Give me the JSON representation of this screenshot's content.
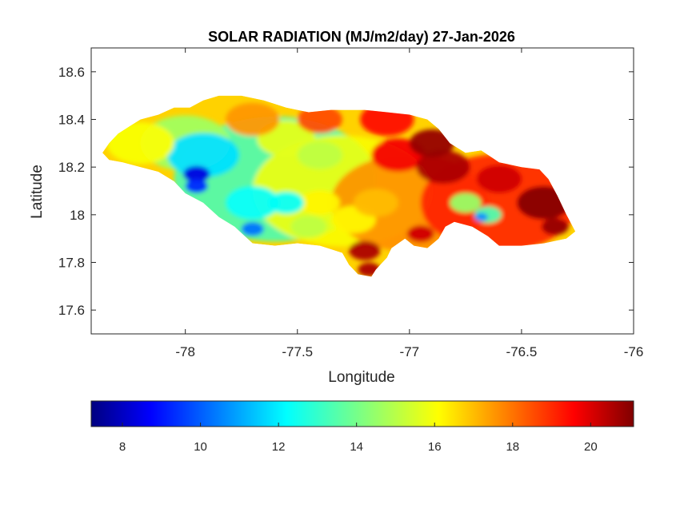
{
  "title": "SOLAR RADIATION (MJ/m2/day) 27-Jan-2026",
  "xlabel": "Longitude",
  "ylabel": "Latitude",
  "xlim": [
    -78.42,
    -76.0
  ],
  "ylim": [
    17.5,
    18.7
  ],
  "xticks": [
    {
      "value": -78,
      "label": "-78"
    },
    {
      "value": -77.5,
      "label": "-77.5"
    },
    {
      "value": -77,
      "label": "-77"
    },
    {
      "value": -76.5,
      "label": "-76.5"
    },
    {
      "value": -76,
      "label": "-76"
    }
  ],
  "yticks": [
    {
      "value": 17.6,
      "label": "17.6"
    },
    {
      "value": 17.8,
      "label": "17.8"
    },
    {
      "value": 18,
      "label": "18"
    },
    {
      "value": 18.2,
      "label": "18.2"
    },
    {
      "value": 18.4,
      "label": "18.4"
    },
    {
      "value": 18.6,
      "label": "18.6"
    }
  ],
  "colorbar": {
    "colormap": "jet",
    "range": [
      7.2,
      21.1
    ],
    "ticks": [
      {
        "value": 8,
        "label": "8"
      },
      {
        "value": 10,
        "label": "10"
      },
      {
        "value": 12,
        "label": "12"
      },
      {
        "value": 14,
        "label": "14"
      },
      {
        "value": 16,
        "label": "16"
      },
      {
        "value": 18,
        "label": "18"
      },
      {
        "value": 20,
        "label": "20"
      }
    ]
  },
  "map": {
    "region": "Jamaica",
    "outline": [
      [
        -78.37,
        18.26
      ],
      [
        -78.34,
        18.3
      ],
      [
        -78.3,
        18.34
      ],
      [
        -78.25,
        18.37
      ],
      [
        -78.2,
        18.4
      ],
      [
        -78.12,
        18.42
      ],
      [
        -78.05,
        18.45
      ],
      [
        -77.98,
        18.45
      ],
      [
        -77.92,
        18.48
      ],
      [
        -77.85,
        18.5
      ],
      [
        -77.75,
        18.5
      ],
      [
        -77.65,
        18.48
      ],
      [
        -77.55,
        18.45
      ],
      [
        -77.45,
        18.43
      ],
      [
        -77.35,
        18.44
      ],
      [
        -77.2,
        18.44
      ],
      [
        -77.1,
        18.43
      ],
      [
        -77.0,
        18.42
      ],
      [
        -76.92,
        18.4
      ],
      [
        -76.87,
        18.36
      ],
      [
        -76.82,
        18.3
      ],
      [
        -76.75,
        18.26
      ],
      [
        -76.68,
        18.27
      ],
      [
        -76.6,
        18.22
      ],
      [
        -76.5,
        18.2
      ],
      [
        -76.42,
        18.19
      ],
      [
        -76.38,
        18.15
      ],
      [
        -76.34,
        18.08
      ],
      [
        -76.3,
        18.0
      ],
      [
        -76.26,
        17.93
      ],
      [
        -76.3,
        17.9
      ],
      [
        -76.4,
        17.88
      ],
      [
        -76.5,
        17.87
      ],
      [
        -76.6,
        17.87
      ],
      [
        -76.65,
        17.91
      ],
      [
        -76.72,
        17.95
      ],
      [
        -76.8,
        17.97
      ],
      [
        -76.84,
        17.95
      ],
      [
        -76.87,
        17.9
      ],
      [
        -76.92,
        17.86
      ],
      [
        -76.98,
        17.87
      ],
      [
        -77.02,
        17.9
      ],
      [
        -77.08,
        17.86
      ],
      [
        -77.1,
        17.82
      ],
      [
        -77.13,
        17.79
      ],
      [
        -77.15,
        17.77
      ],
      [
        -77.17,
        17.74
      ],
      [
        -77.23,
        17.75
      ],
      [
        -77.27,
        17.79
      ],
      [
        -77.3,
        17.84
      ],
      [
        -77.4,
        17.87
      ],
      [
        -77.5,
        17.88
      ],
      [
        -77.6,
        17.87
      ],
      [
        -77.7,
        17.88
      ],
      [
        -77.78,
        17.95
      ],
      [
        -77.85,
        17.99
      ],
      [
        -77.92,
        18.05
      ],
      [
        -78.0,
        18.09
      ],
      [
        -78.05,
        18.14
      ],
      [
        -78.12,
        18.18
      ],
      [
        -78.2,
        18.2
      ],
      [
        -78.28,
        18.22
      ],
      [
        -78.34,
        18.23
      ]
    ],
    "blobs": [
      {
        "lon": -77.6,
        "lat": 18.15,
        "value": 13.3,
        "r": 0.45
      },
      {
        "lon": -77.3,
        "lat": 18.1,
        "value": 15.8,
        "r": 0.4
      },
      {
        "lon": -77.0,
        "lat": 18.05,
        "value": 17.5,
        "r": 0.35
      },
      {
        "lon": -76.6,
        "lat": 18.05,
        "value": 19.0,
        "r": 0.35
      },
      {
        "lon": -78.0,
        "lat": 18.3,
        "value": 14.6,
        "r": 0.2
      },
      {
        "lon": -78.2,
        "lat": 18.3,
        "value": 15.8,
        "r": 0.15
      },
      {
        "lon": -77.92,
        "lat": 18.25,
        "value": 12.0,
        "r": 0.16
      },
      {
        "lon": -77.95,
        "lat": 18.17,
        "value": 8.5,
        "r": 0.06
      },
      {
        "lon": -77.95,
        "lat": 18.12,
        "value": 9.5,
        "r": 0.05
      },
      {
        "lon": -77.7,
        "lat": 17.94,
        "value": 10.5,
        "r": 0.05
      },
      {
        "lon": -77.7,
        "lat": 18.05,
        "value": 12.5,
        "r": 0.12
      },
      {
        "lon": -77.55,
        "lat": 18.05,
        "value": 12.5,
        "r": 0.08
      },
      {
        "lon": -77.55,
        "lat": 18.32,
        "value": 15.5,
        "r": 0.13
      },
      {
        "lon": -77.4,
        "lat": 18.25,
        "value": 15.0,
        "r": 0.1
      },
      {
        "lon": -77.7,
        "lat": 18.4,
        "value": 17.3,
        "r": 0.12
      },
      {
        "lon": -77.4,
        "lat": 18.4,
        "value": 18.3,
        "r": 0.1
      },
      {
        "lon": -77.1,
        "lat": 18.4,
        "value": 19.2,
        "r": 0.12
      },
      {
        "lon": -77.05,
        "lat": 18.25,
        "value": 19.5,
        "r": 0.12
      },
      {
        "lon": -76.9,
        "lat": 18.3,
        "value": 20.8,
        "r": 0.1
      },
      {
        "lon": -76.85,
        "lat": 18.2,
        "value": 20.5,
        "r": 0.12
      },
      {
        "lon": -76.6,
        "lat": 18.15,
        "value": 20.0,
        "r": 0.1
      },
      {
        "lon": -76.4,
        "lat": 18.05,
        "value": 21.0,
        "r": 0.12
      },
      {
        "lon": -76.35,
        "lat": 17.95,
        "value": 20.8,
        "r": 0.06
      },
      {
        "lon": -76.75,
        "lat": 18.05,
        "value": 14.5,
        "r": 0.07
      },
      {
        "lon": -76.65,
        "lat": 18.0,
        "value": 13.5,
        "r": 0.06
      },
      {
        "lon": -76.68,
        "lat": 17.99,
        "value": 10.8,
        "r": 0.03
      },
      {
        "lon": -77.2,
        "lat": 17.85,
        "value": 20.5,
        "r": 0.07
      },
      {
        "lon": -77.18,
        "lat": 17.77,
        "value": 20.5,
        "r": 0.05
      },
      {
        "lon": -76.95,
        "lat": 17.92,
        "value": 20.0,
        "r": 0.06
      },
      {
        "lon": -77.25,
        "lat": 17.98,
        "value": 16.0,
        "r": 0.1
      },
      {
        "lon": -77.45,
        "lat": 17.95,
        "value": 15.0,
        "r": 0.08
      },
      {
        "lon": -77.15,
        "lat": 18.05,
        "value": 16.8,
        "r": 0.1
      },
      {
        "lon": -77.4,
        "lat": 18.05,
        "value": 16.0,
        "r": 0.09
      }
    ]
  }
}
